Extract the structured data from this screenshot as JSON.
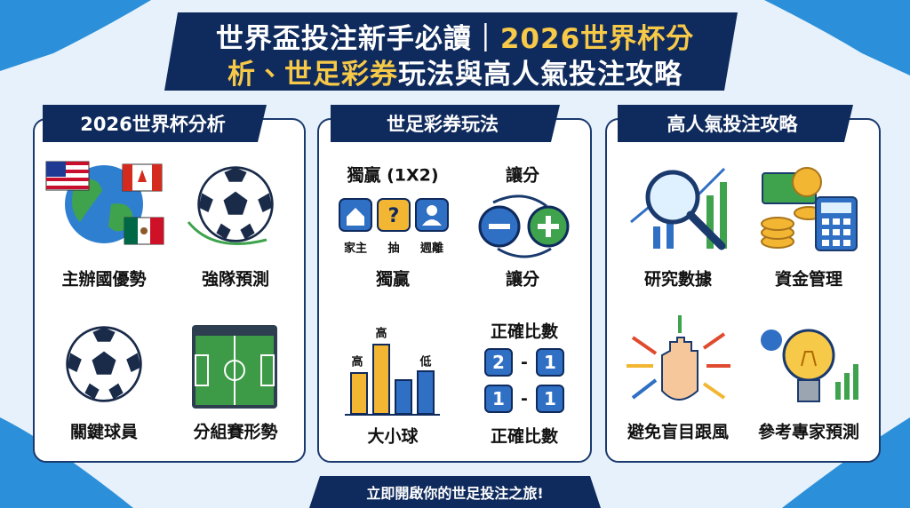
{
  "title": {
    "line1": [
      "世界盃投注新手必讀｜",
      "2026世界杯分"
    ],
    "line2": [
      "析、世足彩券",
      "玩法與高人氣投注攻略"
    ]
  },
  "panels": [
    {
      "heading": "2026世界杯分析",
      "items": [
        "主辦國優勢",
        "強隊預測",
        "關鍵球員",
        "分組賽形勢"
      ]
    },
    {
      "heading": "世足彩券玩法",
      "moneyline": {
        "heading": "獨贏 (1X2)",
        "options": [
          "家主",
          "抽",
          "週離"
        ],
        "caption": "獨贏"
      },
      "handicap": {
        "heading": "讓分",
        "caption": "讓分"
      },
      "over_under": {
        "bar_labels": [
          "高",
          "高",
          "低"
        ],
        "caption": "大小球"
      },
      "correct_score": {
        "heading": "正確比數",
        "scores": [
          [
            "2",
            "-",
            "1"
          ],
          [
            "1",
            "-",
            "1"
          ]
        ],
        "caption": "正確比數"
      }
    },
    {
      "heading": "高人氣投注攻略",
      "items": [
        "研究數據",
        "資金管理",
        "避免盲目跟風",
        "參考專家預測"
      ]
    }
  ],
  "footer": "立即開啟你的世足投注之旅!"
}
